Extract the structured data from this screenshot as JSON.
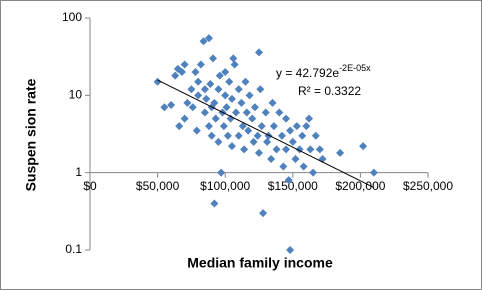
{
  "chart_data": {
    "type": "scatter",
    "x_label": "Median family income",
    "y_label": "Suspen sion rate",
    "color": "#4f81bd",
    "log_y": true,
    "xlim": [
      0,
      250000
    ],
    "ylim": [
      0.1,
      100
    ],
    "xticks": [
      {
        "value": 0,
        "label": "$0"
      },
      {
        "value": 50000,
        "label": "$50,000"
      },
      {
        "value": 100000,
        "label": "$100,000"
      },
      {
        "value": 150000,
        "label": "$150,000"
      },
      {
        "value": 200000,
        "label": "$200,000"
      },
      {
        "value": 250000,
        "label": "$250,000"
      }
    ],
    "yticks": [
      0.1,
      1,
      10,
      100
    ],
    "trendline": {
      "a": 42.792,
      "b": -2e-05,
      "color": "#000000"
    },
    "equation": {
      "text": "y = 42.792e",
      "exponent": "-2E-05x"
    },
    "r_squared": "R² = 0.3322",
    "x": [
      50000,
      55000,
      60000,
      63000,
      65000,
      66000,
      68000,
      70000,
      70000,
      72000,
      75000,
      76000,
      78000,
      79000,
      80000,
      80000,
      82000,
      84000,
      85000,
      85000,
      86000,
      88000,
      88000,
      89000,
      90000,
      90000,
      91000,
      92000,
      92000,
      93000,
      95000,
      95000,
      96000,
      97000,
      98000,
      99000,
      100000,
      100000,
      101000,
      102000,
      103000,
      104000,
      105000,
      105000,
      106000,
      107000,
      108000,
      110000,
      110000,
      112000,
      113000,
      114000,
      115000,
      116000,
      117000,
      118000,
      120000,
      121000,
      122000,
      124000,
      125000,
      125000,
      126000,
      127000,
      128000,
      130000,
      131000,
      132000,
      134000,
      135000,
      136000,
      138000,
      140000,
      142000,
      143000,
      145000,
      145000,
      147000,
      148000,
      148000,
      150000,
      152000,
      153000,
      155000,
      157000,
      158000,
      160000,
      162000,
      163000,
      165000,
      167000,
      170000,
      172000,
      185000,
      202000,
      210000
    ],
    "y": [
      15,
      7,
      7.5,
      18,
      22,
      4,
      20,
      25,
      5,
      8,
      12,
      7,
      20,
      3.5,
      15,
      10,
      25,
      50,
      12,
      6,
      9,
      55,
      4,
      14,
      7,
      3,
      30,
      8,
      0.4,
      5,
      12,
      2.5,
      18,
      1.0,
      6,
      4,
      10,
      20,
      7,
      3,
      15,
      5,
      9,
      2.2,
      30,
      25,
      6,
      12,
      3,
      8,
      4,
      2,
      15,
      6,
      3.5,
      10,
      5,
      2.5,
      7,
      3,
      36,
      1.8,
      12,
      4,
      0.3,
      6,
      2.5,
      3,
      1.5,
      8,
      4,
      2,
      6,
      3,
      1.2,
      2,
      5,
      0.8,
      0.1,
      3.5,
      2.5,
      1.5,
      4,
      2,
      3,
      1.2,
      4,
      5,
      2,
      1,
      3,
      2,
      1.5,
      1.8,
      2.2,
      1.0
    ]
  }
}
